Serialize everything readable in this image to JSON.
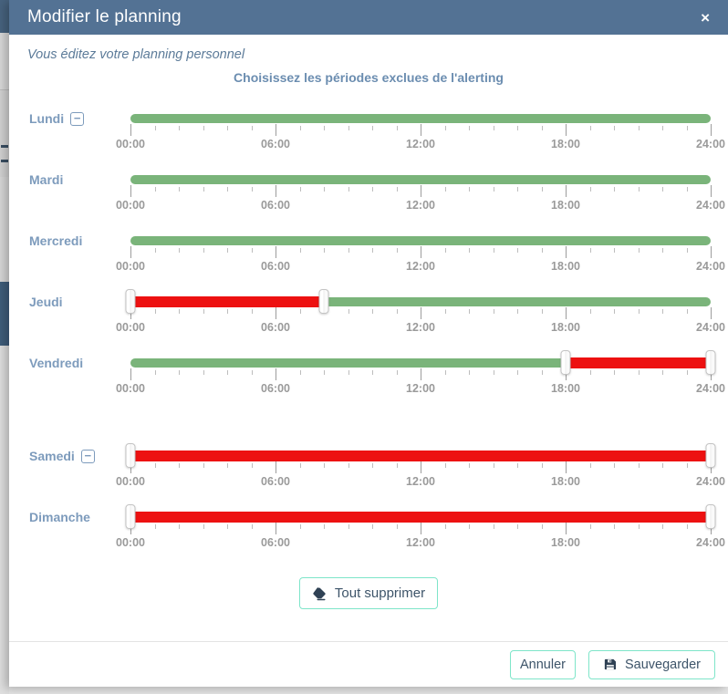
{
  "modal": {
    "title": "Modifier le planning",
    "subtitle": "Vous éditez votre planning personnel",
    "heading": "Choisissez les périodes exclues de l'alerting"
  },
  "icons": {
    "close": "×",
    "collapse": "−",
    "clear_all": "eraser-icon",
    "save": "floppy-disk-icon"
  },
  "slider": {
    "hour_start": 0,
    "hour_end": 24,
    "minor_tick_every_hours": 1,
    "major_ticks": [
      {
        "hour": 0,
        "label": "00:00"
      },
      {
        "hour": 6,
        "label": "06:00"
      },
      {
        "hour": 12,
        "label": "12:00"
      },
      {
        "hour": 18,
        "label": "18:00"
      },
      {
        "hour": 24,
        "label": "24:00"
      }
    ]
  },
  "days": [
    {
      "label": "Lundi",
      "collapse_icon": true,
      "extra_gap": false,
      "segments": [
        {
          "from": 0,
          "to": 24,
          "type": "included"
        }
      ],
      "handles": []
    },
    {
      "label": "Mardi",
      "collapse_icon": false,
      "extra_gap": false,
      "segments": [
        {
          "from": 0,
          "to": 24,
          "type": "included"
        }
      ],
      "handles": []
    },
    {
      "label": "Mercredi",
      "collapse_icon": false,
      "extra_gap": false,
      "segments": [
        {
          "from": 0,
          "to": 24,
          "type": "included"
        }
      ],
      "handles": []
    },
    {
      "label": "Jeudi",
      "collapse_icon": false,
      "extra_gap": false,
      "segments": [
        {
          "from": 0,
          "to": 8,
          "type": "excluded"
        },
        {
          "from": 8,
          "to": 24,
          "type": "included"
        }
      ],
      "handles": [
        0,
        8
      ]
    },
    {
      "label": "Vendredi",
      "collapse_icon": false,
      "extra_gap": false,
      "segments": [
        {
          "from": 0,
          "to": 18,
          "type": "included"
        },
        {
          "from": 18,
          "to": 24,
          "type": "excluded"
        }
      ],
      "handles": [
        18,
        24
      ]
    },
    {
      "label": "Samedi",
      "collapse_icon": true,
      "extra_gap": true,
      "segments": [
        {
          "from": 0,
          "to": 24,
          "type": "excluded"
        }
      ],
      "handles": [
        0,
        24
      ]
    },
    {
      "label": "Dimanche",
      "collapse_icon": false,
      "extra_gap": false,
      "segments": [
        {
          "from": 0,
          "to": 24,
          "type": "excluded"
        }
      ],
      "handles": [
        0,
        24
      ]
    }
  ],
  "actions": {
    "clear_all": "Tout supprimer",
    "cancel": "Annuler",
    "save": "Sauvegarder"
  },
  "colors": {
    "included": "#7ab47a",
    "excluded": "#ed1111",
    "header_bg": "#537294",
    "accent_border": "#7ee5c9",
    "day_label": "#7d9bbc",
    "heading_text": "#6b8db0",
    "button_text": "#3d5469"
  }
}
